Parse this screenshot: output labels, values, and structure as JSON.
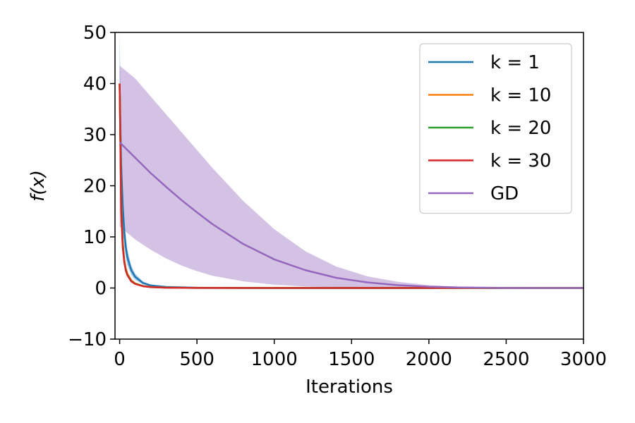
{
  "chart_data": {
    "type": "line",
    "xlabel": "Iterations",
    "ylabel": "f(x)",
    "xlim": [
      -30,
      3000
    ],
    "ylim": [
      -10,
      50
    ],
    "xticks": [
      0,
      500,
      1000,
      1500,
      2000,
      2500,
      3000
    ],
    "yticks": [
      -10,
      0,
      10,
      20,
      30,
      40,
      50
    ],
    "xtick_labels": [
      "0",
      "500",
      "1000",
      "1500",
      "2000",
      "2500",
      "3000"
    ],
    "ytick_labels": [
      "−10",
      "0",
      "10",
      "20",
      "30",
      "40",
      "50"
    ],
    "grid": false,
    "legend_position": "top-right",
    "series": [
      {
        "name": "k = 1",
        "color": "#1f77b4",
        "x": [
          0,
          10,
          20,
          30,
          40,
          50,
          75,
          100,
          150,
          200,
          300,
          500,
          1000,
          2000,
          3000
        ],
        "y": [
          40,
          24,
          16,
          11,
          8,
          6,
          3.5,
          2.2,
          1.0,
          0.5,
          0.2,
          0.05,
          0,
          0,
          0
        ],
        "band_lower": [
          30,
          18,
          12,
          8,
          6,
          4.5,
          2.6,
          1.6,
          0.7,
          0.3,
          0.1,
          0.02,
          0,
          0,
          0
        ],
        "band_upper": [
          50,
          30,
          20,
          14,
          10,
          7.5,
          4.4,
          2.8,
          1.3,
          0.7,
          0.3,
          0.08,
          0,
          0,
          0
        ]
      },
      {
        "name": "k = 10",
        "color": "#ff7f0e",
        "x": [
          0,
          10,
          20,
          30,
          40,
          50,
          75,
          100,
          150,
          200,
          300,
          500,
          1000,
          2000,
          3000
        ],
        "y": [
          40,
          17,
          9,
          5.5,
          3.8,
          2.8,
          1.5,
          0.9,
          0.4,
          0.2,
          0.08,
          0.02,
          0,
          0,
          0
        ]
      },
      {
        "name": "k = 20",
        "color": "#2ca02c",
        "x": [
          0,
          10,
          20,
          30,
          40,
          50,
          75,
          100,
          150,
          200,
          300,
          500,
          1000,
          2000,
          3000
        ],
        "y": [
          40,
          16,
          8.5,
          5.2,
          3.6,
          2.6,
          1.4,
          0.85,
          0.38,
          0.18,
          0.07,
          0.02,
          0,
          0,
          0
        ]
      },
      {
        "name": "k = 30",
        "color": "#d62728",
        "x": [
          0,
          10,
          20,
          30,
          40,
          50,
          75,
          100,
          150,
          200,
          300,
          500,
          1000,
          2000,
          3000
        ],
        "y": [
          40,
          15,
          8,
          5,
          3.4,
          2.5,
          1.3,
          0.8,
          0.35,
          0.17,
          0.06,
          0.02,
          0,
          0,
          0
        ]
      },
      {
        "name": "GD",
        "color": "#9467bd",
        "x": [
          0,
          100,
          200,
          300,
          400,
          500,
          600,
          800,
          1000,
          1200,
          1400,
          1600,
          1800,
          2000,
          2200,
          2500,
          2800,
          3000
        ],
        "y": [
          28.5,
          25.5,
          22.5,
          19.8,
          17.2,
          14.8,
          12.5,
          8.6,
          5.6,
          3.5,
          2.0,
          1.1,
          0.55,
          0.25,
          0.1,
          0.02,
          0,
          0
        ],
        "band_lower": [
          12,
          9.5,
          7.5,
          5.8,
          4.4,
          3.3,
          2.4,
          1.3,
          0.65,
          0.3,
          0.12,
          0.05,
          0.02,
          0,
          0,
          0,
          0,
          0
        ],
        "band_upper": [
          43.5,
          41,
          37.5,
          34,
          30.5,
          27,
          23.5,
          17,
          11.5,
          7.2,
          4.2,
          2.3,
          1.2,
          0.55,
          0.25,
          0.06,
          0.01,
          0
        ]
      }
    ]
  }
}
